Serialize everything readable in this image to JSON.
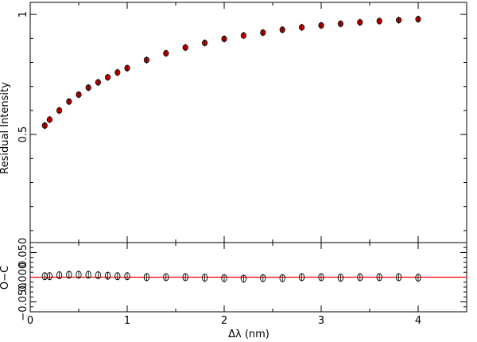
{
  "chart_data": [
    {
      "panel": "top",
      "type": "scatter",
      "ylabel": "Residual Intensity",
      "xlim": [
        0,
        4.5
      ],
      "ylim": [
        0.05,
        1.05
      ],
      "ytick_labels": [
        "0.5",
        "1"
      ],
      "yticks": [
        0.5,
        1.0
      ],
      "x": [
        0.15,
        0.2,
        0.3,
        0.4,
        0.5,
        0.6,
        0.7,
        0.8,
        0.9,
        1.0,
        1.2,
        1.4,
        1.6,
        1.8,
        2.0,
        2.2,
        2.4,
        2.6,
        2.8,
        3.0,
        3.2,
        3.4,
        3.6,
        3.8,
        4.0
      ],
      "y": [
        0.537,
        0.562,
        0.6,
        0.637,
        0.666,
        0.695,
        0.717,
        0.738,
        0.758,
        0.776,
        0.81,
        0.838,
        0.862,
        0.881,
        0.898,
        0.912,
        0.924,
        0.936,
        0.946,
        0.954,
        0.961,
        0.967,
        0.972,
        0.976,
        0.98
      ],
      "marker_color": "#cc0000",
      "marker_edge": "#000000"
    },
    {
      "panel": "bottom",
      "type": "scatter",
      "xlabel": "Δλ (nm)",
      "ylabel": "O−C",
      "xlim": [
        0,
        4.5
      ],
      "ylim": [
        -0.07,
        0.07
      ],
      "xtick_labels": [
        "0",
        "1",
        "2",
        "3",
        "4"
      ],
      "xticks": [
        0,
        1,
        2,
        3,
        4
      ],
      "ytick_labels": [
        "−0.050",
        "0.000",
        "0.050"
      ],
      "yticks": [
        -0.05,
        0.0,
        0.05
      ],
      "x": [
        0.15,
        0.2,
        0.3,
        0.4,
        0.5,
        0.6,
        0.7,
        0.8,
        0.9,
        1.0,
        1.2,
        1.4,
        1.6,
        1.8,
        2.0,
        2.2,
        2.4,
        2.6,
        2.8,
        3.0,
        3.2,
        3.4,
        3.6,
        3.8,
        4.0
      ],
      "y": [
        0.002,
        0.002,
        0.004,
        0.005,
        0.005,
        0.005,
        0.004,
        0.003,
        0.002,
        0.002,
        0.0,
        0.0,
        0.0,
        -0.001,
        -0.002,
        -0.003,
        -0.002,
        -0.002,
        0.0,
        0.0,
        -0.001,
        0.0,
        0.0,
        0.0,
        -0.001
      ],
      "yerr": 0.007,
      "reference_line": 0.0,
      "reference_color": "#ff0000"
    }
  ]
}
